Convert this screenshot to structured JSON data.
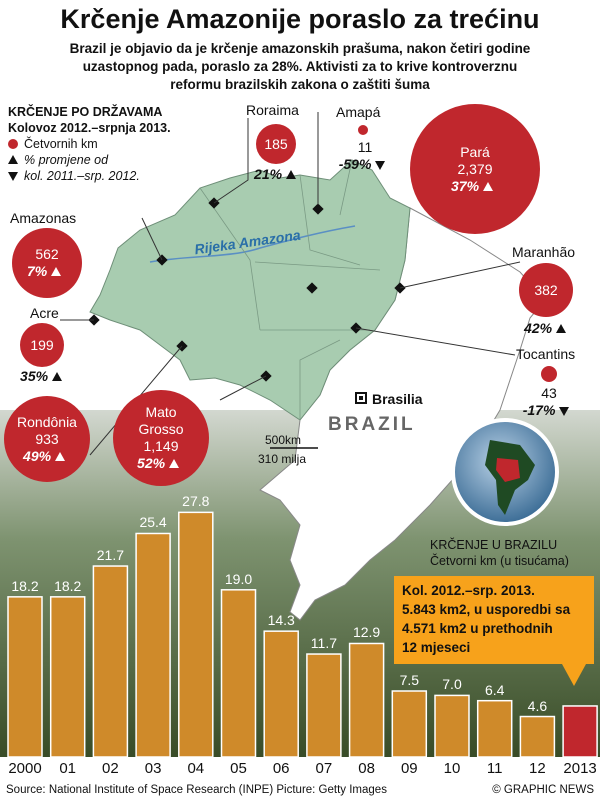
{
  "header": {
    "title": "Krčenje Amazonije poraslo za trećinu",
    "subtitle_lines": [
      "Brazil je objavio da je krčenje amazonskih prašuma, nakon četiri godine",
      "uzastopnog pada, poraslo za 28%. Aktivisti za to krive kontroverznu",
      "reformu brazilskih zakona o zaštiti šuma"
    ]
  },
  "legend": {
    "heading": "KRČENJE PO DRŽAVAMA",
    "period": "Kolovoz 2012.–srpnja 2013.",
    "unit": "Četvornih km",
    "change": "% promjene od",
    "change_period": "kol. 2011.–srp. 2012."
  },
  "map": {
    "river": "Rijeka Amazona",
    "country": "BRAZIL",
    "capital": "Brasilia",
    "scale_km": "500km",
    "scale_mi": "310 milja",
    "colors": {
      "amazon": "#a8ccb0",
      "rest": "#ffffff",
      "circle": "#c0272d"
    }
  },
  "states": {
    "roraima": {
      "name": "Roraima",
      "value": "185",
      "change": "21%",
      "dir": "up"
    },
    "amapa": {
      "name": "Amapá",
      "value": "11",
      "change": "-59%",
      "dir": "down"
    },
    "para": {
      "name": "Pará",
      "value": "2,379",
      "change": "37%",
      "dir": "up"
    },
    "amazonas": {
      "name": "Amazonas",
      "value": "562",
      "change": "7%",
      "dir": "up"
    },
    "maranhao": {
      "name": "Maranhão",
      "value": "382",
      "change": "42%",
      "dir": "up"
    },
    "acre": {
      "name": "Acre",
      "value": "199",
      "change": "35%",
      "dir": "up"
    },
    "tocantins": {
      "name": "Tocantins",
      "value": "43",
      "change": "-17%",
      "dir": "down"
    },
    "rondonia": {
      "name": "Rondônia",
      "value": "933",
      "change": "49%",
      "dir": "up"
    },
    "matogrosso": {
      "name_1": "Mato",
      "name_2": "Grosso",
      "value": "1,149",
      "change": "52%",
      "dir": "up"
    }
  },
  "chart_label": {
    "line1": "KRČENJE U BRAZILU",
    "line2": "Četvorni km (u tisućama)"
  },
  "callout": {
    "lines": [
      "Kol. 2012.–srp. 2013.",
      "5.843 km2, u usporedbi sa",
      "4.571 km2 u prethodnih",
      "12 mjeseci"
    ]
  },
  "chart_data": {
    "type": "bar",
    "title": "KRČENJE U BRAZILU",
    "ylabel": "Četvorni km (u tisućama)",
    "categories": [
      "2000",
      "01",
      "02",
      "03",
      "04",
      "05",
      "06",
      "07",
      "08",
      "09",
      "10",
      "11",
      "12",
      "2013"
    ],
    "values": [
      18.2,
      18.2,
      21.7,
      25.4,
      27.8,
      19.0,
      14.3,
      11.7,
      12.9,
      7.5,
      7.0,
      6.4,
      4.6,
      5.8
    ],
    "labels": [
      "18.2",
      "18.2",
      "21.7",
      "25.4",
      "27.8",
      "19.0",
      "14.3",
      "11.7",
      "12.9",
      "7.5",
      "7.0",
      "6.4",
      "4.6",
      ""
    ],
    "ylim": [
      0,
      30
    ],
    "colors": {
      "bar": "#cf8a2a",
      "highlight": "#c0272d"
    }
  },
  "footer": {
    "source": "Source: National Institute of Space Research (INPE)   Picture: Getty Images",
    "credit": "© GRAPHIC NEWS"
  }
}
